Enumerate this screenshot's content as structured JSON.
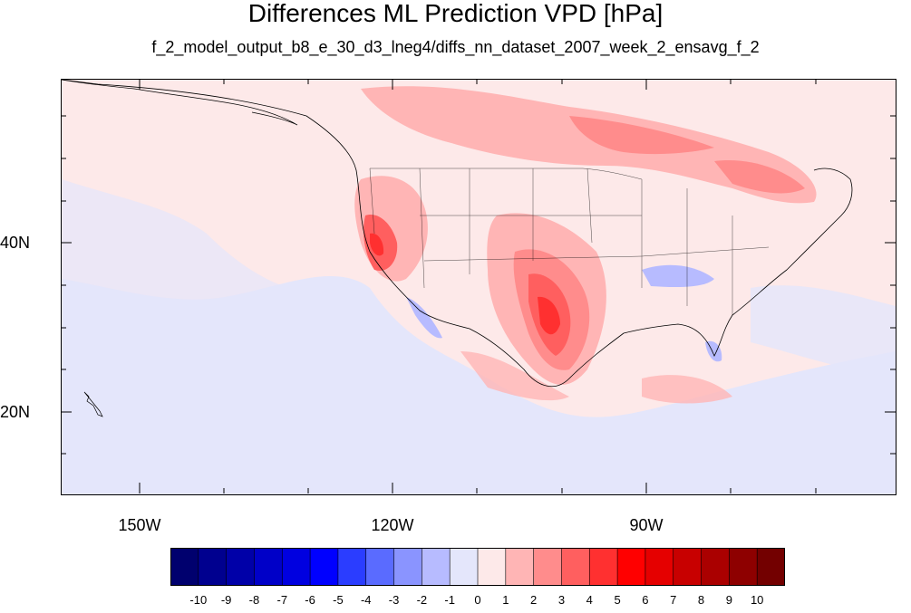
{
  "title": "Differences ML Prediction VPD [hPa]",
  "subtitle": "f_2_model_output_b8_e_30_d3_lneg4/diffs_nn_dataset_2007_week_2_ensavg_f_2",
  "axes": {
    "lon_labels": [
      "150W",
      "120W",
      "90W"
    ],
    "lat_labels": [
      "40N",
      "20N"
    ]
  },
  "colorbar": {
    "labels": [
      "-10",
      "-9",
      "-8",
      "-7",
      "-6",
      "-5",
      "-4",
      "-3",
      "-2",
      "-1",
      "0",
      "1",
      "2",
      "3",
      "4",
      "5",
      "6",
      "7",
      "8",
      "9",
      "10"
    ],
    "colors": [
      "#00006e",
      "#00008f",
      "#0000a8",
      "#0000c8",
      "#0000e0",
      "#0000ff",
      "#2b3dff",
      "#5a6bff",
      "#8a94ff",
      "#b7bbff",
      "#e4e6fb",
      "#fde9e9",
      "#ffb5b5",
      "#ff8c8c",
      "#ff5f5f",
      "#ff3030",
      "#ff0000",
      "#e50000",
      "#c80000",
      "#aa0000",
      "#8e0000",
      "#730000"
    ]
  }
}
